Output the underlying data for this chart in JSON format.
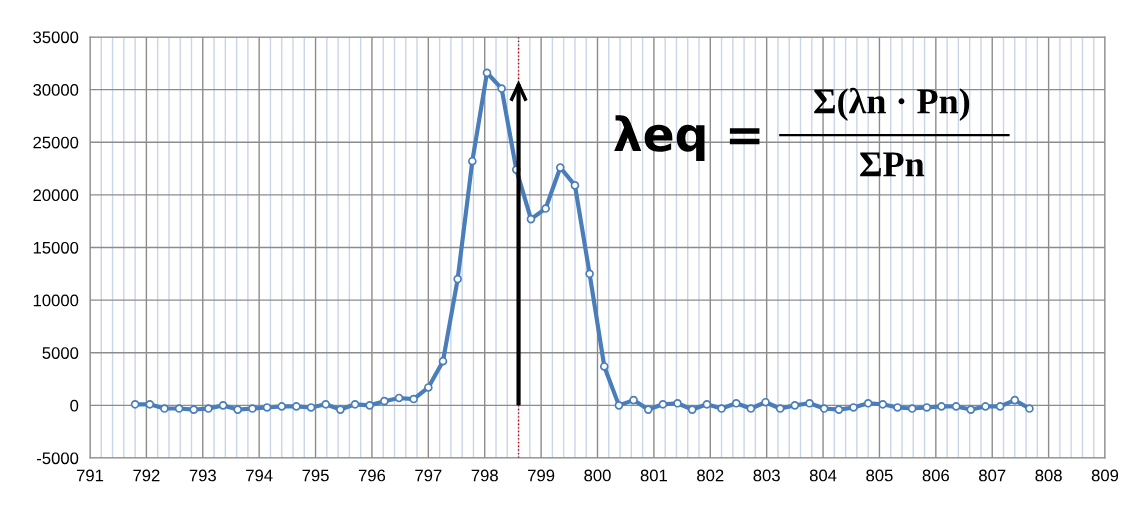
{
  "chart_data": {
    "type": "line",
    "marker": "circle",
    "line_style": "solid",
    "grid": true,
    "x": [
      791.8,
      792.06,
      792.32,
      792.58,
      792.84,
      793.1,
      793.36,
      793.62,
      793.88,
      794.14,
      794.4,
      794.66,
      794.92,
      795.18,
      795.44,
      795.7,
      795.96,
      796.22,
      796.48,
      796.74,
      797.0,
      797.26,
      797.52,
      797.78,
      798.04,
      798.3,
      798.56,
      798.82,
      799.08,
      799.34,
      799.6,
      799.86,
      800.12,
      800.38,
      800.64,
      800.9,
      801.16,
      801.42,
      801.68,
      801.94,
      802.2,
      802.46,
      802.72,
      802.98,
      803.24,
      803.5,
      803.76,
      804.02,
      804.28,
      804.54,
      804.8,
      805.06,
      805.32,
      805.58,
      805.84,
      806.1,
      806.36,
      806.62,
      806.88,
      807.14,
      807.4,
      807.66
    ],
    "series": [
      {
        "color": "#4a7ebb",
        "values": [
          100,
          100,
          -300,
          -300,
          -400,
          -300,
          0,
          -400,
          -300,
          -200,
          -100,
          -100,
          -200,
          100,
          -400,
          100,
          0,
          400,
          700,
          600,
          1700,
          4200,
          12000,
          23200,
          31600,
          30100,
          22400,
          17700,
          18700,
          22600,
          20900,
          12500,
          3700,
          0,
          500,
          -400,
          100,
          200,
          -400,
          100,
          -300,
          200,
          -300,
          300,
          -300,
          0,
          200,
          -300,
          -400,
          -200,
          200,
          100,
          -200,
          -300,
          -200,
          -100,
          -100,
          -400,
          -100,
          -100,
          500,
          -300
        ]
      },
      {
        "type": "line",
        "x": [
          798.6,
          798.6
        ],
        "values": [
          0,
          30500
        ],
        "color": "#000000",
        "marker": "none"
      }
    ],
    "xlim": [
      791,
      809
    ],
    "xticks": [
      791,
      792,
      793,
      794,
      795,
      796,
      797,
      798,
      799,
      800,
      801,
      802,
      803,
      804,
      805,
      806,
      807,
      808,
      809
    ],
    "ylim": [
      -5000,
      35000
    ],
    "yticks": [
      -5000,
      0,
      5000,
      10000,
      15000,
      20000,
      25000,
      30000,
      35000
    ],
    "ref_lines": [
      {
        "axis": "x",
        "value": 798.6,
        "color": "#c00000",
        "line_style": "dotted"
      }
    ],
    "annotations": [
      "λeq =",
      "Σ(λn · Pn)",
      "ΣPn"
    ]
  }
}
